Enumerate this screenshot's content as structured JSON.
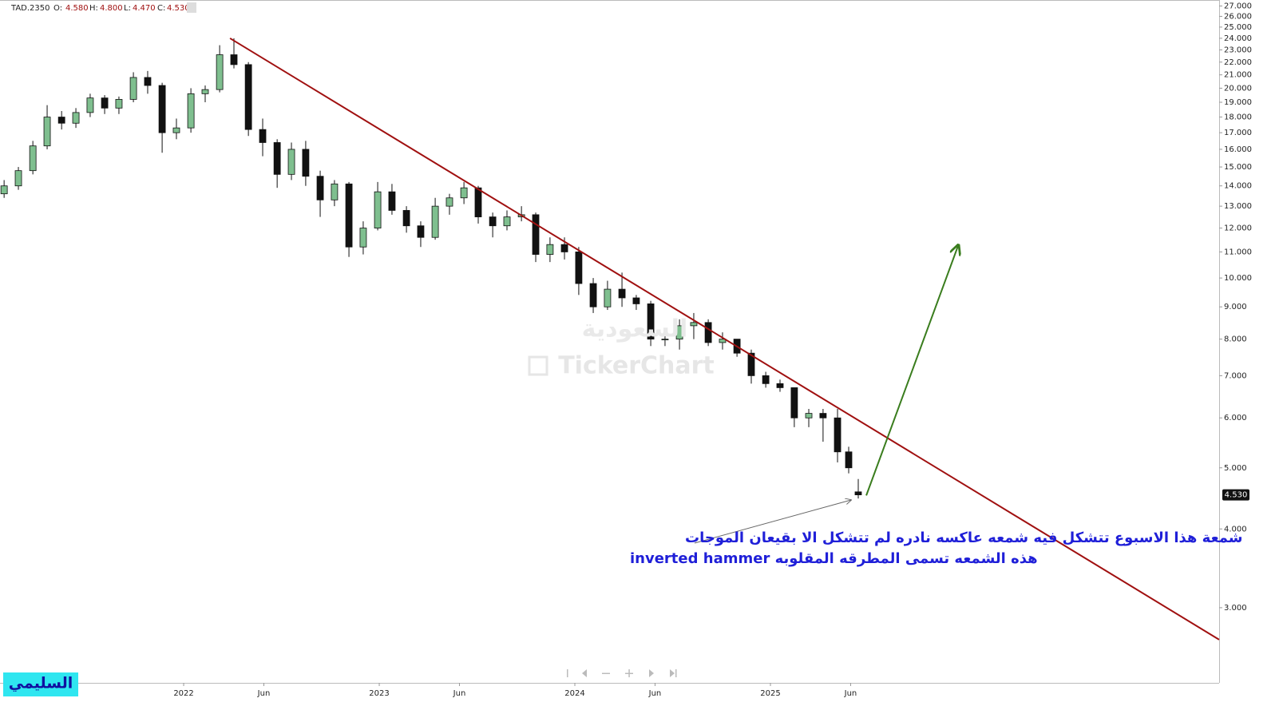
{
  "chart_data": {
    "type": "candlestick",
    "header": {
      "symbol": "TAD.2350",
      "open_label": "O:",
      "open": "4.580",
      "high_label": "H:",
      "high": "4.800",
      "low_label": "L:",
      "low": "4.470",
      "close_label": "C:",
      "close": "4.530"
    },
    "watermark": [
      "السعودية",
      "TickerChart"
    ],
    "x": [
      2021.082,
      2021.155,
      2021.229,
      2021.302,
      2021.376,
      2021.449,
      2021.522,
      2021.596,
      2021.669,
      2021.743,
      2021.816,
      2021.89,
      2021.963,
      2022.037,
      2022.11,
      2022.184,
      2022.257,
      2022.331,
      2022.404,
      2022.478,
      2022.551,
      2022.624,
      2022.698,
      2022.771,
      2022.845,
      2022.918,
      2022.992,
      2023.065,
      2023.139,
      2023.212,
      2023.286,
      2023.359,
      2023.433,
      2023.506,
      2023.58,
      2023.653,
      2023.727,
      2023.8,
      2023.873,
      2023.947,
      2024.02,
      2024.094,
      2024.167,
      2024.241,
      2024.314,
      2024.388,
      2024.461,
      2024.535,
      2024.608,
      2024.682,
      2024.755,
      2024.829,
      2024.902,
      2024.976,
      2025.049,
      2025.122,
      2025.196,
      2025.269,
      2025.343,
      2025.4,
      2025.449
    ],
    "open": [
      13.6,
      14.0,
      14.8,
      16.2,
      18.0,
      17.6,
      18.3,
      19.3,
      18.6,
      19.2,
      20.8,
      20.2,
      17.0,
      17.3,
      19.6,
      19.9,
      22.6,
      21.8,
      17.2,
      16.4,
      14.6,
      16.0,
      14.5,
      13.3,
      14.1,
      11.2,
      12.0,
      13.7,
      12.8,
      12.1,
      11.6,
      13.0,
      13.4,
      13.9,
      12.5,
      12.1,
      12.5,
      12.6,
      10.9,
      11.3,
      11.0,
      9.8,
      9.0,
      9.6,
      9.3,
      9.1,
      8.0,
      8.0,
      8.4,
      8.5,
      7.9,
      8.0,
      7.6,
      7.0,
      6.8,
      6.7,
      6.0,
      6.1,
      6.0,
      5.3,
      4.58
    ],
    "high": [
      14.3,
      15.0,
      16.5,
      18.8,
      18.4,
      18.6,
      19.6,
      19.5,
      19.4,
      21.2,
      21.3,
      20.4,
      17.9,
      20.0,
      20.2,
      23.4,
      24.0,
      22.0,
      17.9,
      16.6,
      16.4,
      16.5,
      14.8,
      14.3,
      14.2,
      12.3,
      14.2,
      14.1,
      13.0,
      12.3,
      13.4,
      13.6,
      14.2,
      14.0,
      12.7,
      12.8,
      13.0,
      12.7,
      11.6,
      11.6,
      11.2,
      10.0,
      9.9,
      10.2,
      9.4,
      9.2,
      8.2,
      8.6,
      8.8,
      8.6,
      8.2,
      8.0,
      7.7,
      7.1,
      6.9,
      6.7,
      6.2,
      6.2,
      6.2,
      5.4,
      4.8
    ],
    "low": [
      13.4,
      13.8,
      14.6,
      16.0,
      17.2,
      17.3,
      18.0,
      18.2,
      18.2,
      19.0,
      19.6,
      15.8,
      16.6,
      17.0,
      19.0,
      19.7,
      21.5,
      16.8,
      15.6,
      13.9,
      14.3,
      14.0,
      12.5,
      13.0,
      10.8,
      10.9,
      11.9,
      12.6,
      11.8,
      11.2,
      11.5,
      12.6,
      13.1,
      12.2,
      11.6,
      11.9,
      12.3,
      10.6,
      10.6,
      10.7,
      9.4,
      8.8,
      8.9,
      9.0,
      8.9,
      7.8,
      7.8,
      7.7,
      8.0,
      7.8,
      7.7,
      7.5,
      6.8,
      6.7,
      6.6,
      5.8,
      5.8,
      5.5,
      5.1,
      4.9,
      4.47
    ],
    "close": [
      14.0,
      14.8,
      16.2,
      18.0,
      17.6,
      18.3,
      19.3,
      18.6,
      19.2,
      20.8,
      20.2,
      17.0,
      17.3,
      19.6,
      19.9,
      22.6,
      21.8,
      17.2,
      16.4,
      14.6,
      16.0,
      14.5,
      13.3,
      14.1,
      11.2,
      12.0,
      13.7,
      12.8,
      12.1,
      11.6,
      13.0,
      13.4,
      13.9,
      12.5,
      12.1,
      12.5,
      12.6,
      10.9,
      11.3,
      11.0,
      9.8,
      9.0,
      9.6,
      9.3,
      9.1,
      8.0,
      8.0,
      8.4,
      8.5,
      7.9,
      8.0,
      7.6,
      7.0,
      6.8,
      6.7,
      6.0,
      6.1,
      6.0,
      5.3,
      5.0,
      4.53
    ],
    "up_color": "#7fbf8f",
    "down_color": "#111111",
    "last_price_label": "4.530",
    "trendline": {
      "color": "#a01010",
      "x": [
        2022.237,
        2027.294
      ],
      "y": [
        24,
        2.67
      ]
    },
    "projection": {
      "color": "#3a7d1e",
      "x": [
        2025.49,
        2025.959
      ],
      "y": [
        4.52,
        11.24
      ]
    },
    "annotation": [
      "شمعة هذا الاسبوع تتشكل فيه شمعه عاكسه نادره لم تتشكل الا بقيعان الموجات",
      "هذه الشمعه تسمى المطرقه المقلوبه inverted hammer"
    ],
    "author": "السليمي",
    "log_scale": true,
    "xlim": [
      2021.061,
      2027.294
    ],
    "ylim": [
      2.28,
      27.6
    ],
    "xticks": [
      {
        "value": 2022.0,
        "label": "2022"
      },
      {
        "value": 2022.41,
        "label": "Jun"
      },
      {
        "value": 2023.0,
        "label": "2023"
      },
      {
        "value": 2023.41,
        "label": "Jun"
      },
      {
        "value": 2024.0,
        "label": "2024"
      },
      {
        "value": 2024.41,
        "label": "Jun"
      },
      {
        "value": 2025.0,
        "label": "2025"
      },
      {
        "value": 2025.41,
        "label": "Jun"
      }
    ],
    "yticks": [
      {
        "value": 3,
        "label": "3.000"
      },
      {
        "value": 4,
        "label": "4.000"
      },
      {
        "value": 5,
        "label": "5.000"
      },
      {
        "value": 6,
        "label": "6.000"
      },
      {
        "value": 7,
        "label": "7.000"
      },
      {
        "value": 8,
        "label": "8.000"
      },
      {
        "value": 9,
        "label": "9.000"
      },
      {
        "value": 10,
        "label": "10.000"
      },
      {
        "value": 11,
        "label": "11.000"
      },
      {
        "value": 12,
        "label": "12.000"
      },
      {
        "value": 13,
        "label": "13.000"
      },
      {
        "value": 14,
        "label": "14.000"
      },
      {
        "value": 15,
        "label": "15.000"
      },
      {
        "value": 16,
        "label": "16.000"
      },
      {
        "value": 17,
        "label": "17.000"
      },
      {
        "value": 18,
        "label": "18.000"
      },
      {
        "value": 19,
        "label": "19.000"
      },
      {
        "value": 20,
        "label": "20.000"
      },
      {
        "value": 21,
        "label": "21.000"
      },
      {
        "value": 22,
        "label": "22.000"
      },
      {
        "value": 23,
        "label": "23.000"
      },
      {
        "value": 24,
        "label": "24.000"
      },
      {
        "value": 25,
        "label": "25.000"
      },
      {
        "value": 26,
        "label": "26.000"
      },
      {
        "value": 27,
        "label": "27.000"
      }
    ]
  }
}
